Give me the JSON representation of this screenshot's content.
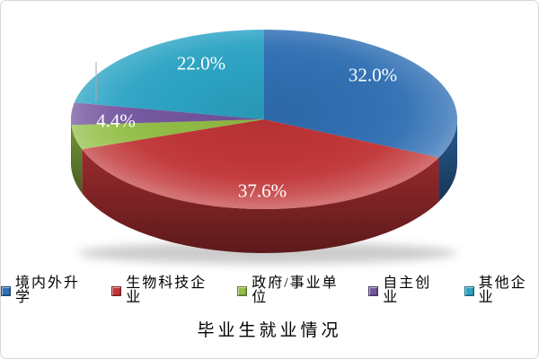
{
  "chart_data": {
    "type": "pie",
    "title": "毕业生就业情况",
    "legend_position": "bottom",
    "label_color": "#FFFFFF",
    "slices": [
      {
        "name": "境内外升学",
        "value": 32.0,
        "label": "32.0%",
        "color": "#3170B4"
      },
      {
        "name": "生物科技企业",
        "value": 37.6,
        "label": "37.6%",
        "color": "#C13638"
      },
      {
        "name": "政府/事业单位",
        "value": 4.4,
        "label": "4.4%",
        "color": "#92BE46"
      },
      {
        "name": "自主创业",
        "value": 4.0,
        "label": "",
        "color": "#74569F"
      },
      {
        "name": "其他企业",
        "value": 22.0,
        "label": "22.0%",
        "color": "#2CA4C4"
      }
    ]
  }
}
